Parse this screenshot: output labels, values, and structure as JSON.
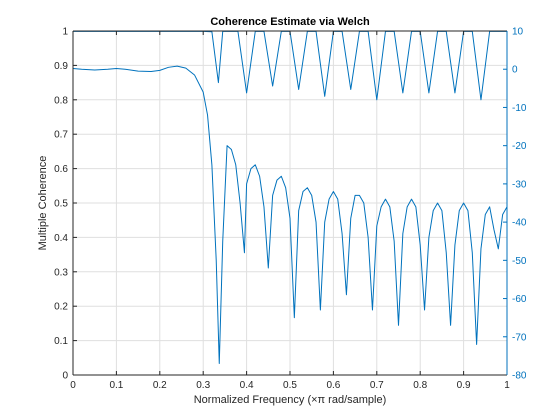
{
  "chart_data": {
    "type": "line",
    "title": "Coherence Estimate via Welch",
    "xlabel": "Normalized Frequency  (×π rad/sample)",
    "ylabel_left": "Multiple Coherence",
    "ylabel_right": "",
    "xlim": [
      0,
      1
    ],
    "ylim_left": [
      0,
      1
    ],
    "ylim_right": [
      -80,
      10
    ],
    "x_ticks": [
      "0",
      "0.1",
      "0.2",
      "0.3",
      "0.4",
      "0.5",
      "0.6",
      "0.7",
      "0.8",
      "0.9",
      "1"
    ],
    "y_ticks_left": [
      "0",
      "0.1",
      "0.2",
      "0.3",
      "0.4",
      "0.5",
      "0.6",
      "0.7",
      "0.8",
      "0.9",
      "1"
    ],
    "y_ticks_right": [
      "-80",
      "-70",
      "-60",
      "-50",
      "-40",
      "-30",
      "-20",
      "-10",
      "0",
      "10"
    ],
    "grid": true,
    "color": "#0072BD",
    "series": [
      {
        "axis": "left",
        "x": [
          0,
          0.05,
          0.1,
          0.15,
          0.2,
          0.25,
          0.28,
          0.3,
          0.32,
          0.335,
          0.345,
          0.36,
          0.38,
          0.4,
          0.42,
          0.44,
          0.46,
          0.48,
          0.5,
          0.52,
          0.54,
          0.56,
          0.58,
          0.6,
          0.62,
          0.64,
          0.66,
          0.68,
          0.7,
          0.72,
          0.74,
          0.76,
          0.78,
          0.8,
          0.82,
          0.84,
          0.86,
          0.88,
          0.9,
          0.92,
          0.94,
          0.96,
          0.98,
          1.0
        ],
        "y": [
          0.999,
          0.999,
          0.999,
          0.999,
          0.999,
          0.999,
          0.999,
          0.999,
          0.998,
          0.85,
          0.999,
          0.999,
          0.999,
          0.82,
          0.999,
          0.999,
          0.84,
          0.999,
          0.999,
          0.83,
          0.999,
          0.999,
          0.81,
          0.999,
          0.999,
          0.83,
          0.999,
          0.999,
          0.8,
          0.999,
          0.999,
          0.82,
          0.999,
          0.999,
          0.82,
          0.999,
          0.999,
          0.82,
          0.999,
          0.999,
          0.8,
          0.999,
          0.999,
          0.999
        ]
      },
      {
        "axis": "right",
        "x": [
          0,
          0.02,
          0.05,
          0.08,
          0.1,
          0.12,
          0.15,
          0.18,
          0.2,
          0.22,
          0.24,
          0.26,
          0.28,
          0.3,
          0.31,
          0.32,
          0.33,
          0.337,
          0.345,
          0.355,
          0.365,
          0.375,
          0.385,
          0.395,
          0.4,
          0.41,
          0.42,
          0.43,
          0.44,
          0.45,
          0.46,
          0.47,
          0.48,
          0.49,
          0.5,
          0.51,
          0.52,
          0.53,
          0.54,
          0.55,
          0.56,
          0.57,
          0.58,
          0.59,
          0.6,
          0.61,
          0.62,
          0.63,
          0.64,
          0.65,
          0.66,
          0.67,
          0.68,
          0.69,
          0.7,
          0.71,
          0.72,
          0.73,
          0.74,
          0.75,
          0.76,
          0.77,
          0.78,
          0.79,
          0.8,
          0.81,
          0.82,
          0.83,
          0.84,
          0.85,
          0.86,
          0.87,
          0.88,
          0.89,
          0.9,
          0.91,
          0.92,
          0.93,
          0.94,
          0.95,
          0.96,
          0.97,
          0.98,
          0.99,
          1.0
        ],
        "y": [
          0.2,
          0.0,
          -0.2,
          0.0,
          0.2,
          0.0,
          -0.5,
          -0.6,
          -0.3,
          0.5,
          0.8,
          0.3,
          -1.5,
          -6,
          -12,
          -25,
          -50,
          -77,
          -45,
          -20,
          -21,
          -25,
          -35,
          -48,
          -30,
          -26,
          -25,
          -28,
          -36,
          -52,
          -33,
          -29,
          -28,
          -31,
          -39,
          -65,
          -37,
          -32,
          -31,
          -33,
          -40,
          -63,
          -40,
          -34,
          -32,
          -34,
          -43,
          -59,
          -39,
          -33,
          -33,
          -35,
          -44,
          -63,
          -41,
          -36,
          -34,
          -36,
          -45,
          -67,
          -43,
          -36,
          -34,
          -36,
          -46,
          -63,
          -44,
          -37,
          -35,
          -37,
          -48,
          -67,
          -46,
          -37,
          -35,
          -37,
          -48,
          -72,
          -47,
          -38,
          -36,
          -42,
          -47,
          -38,
          -36
        ]
      }
    ]
  }
}
